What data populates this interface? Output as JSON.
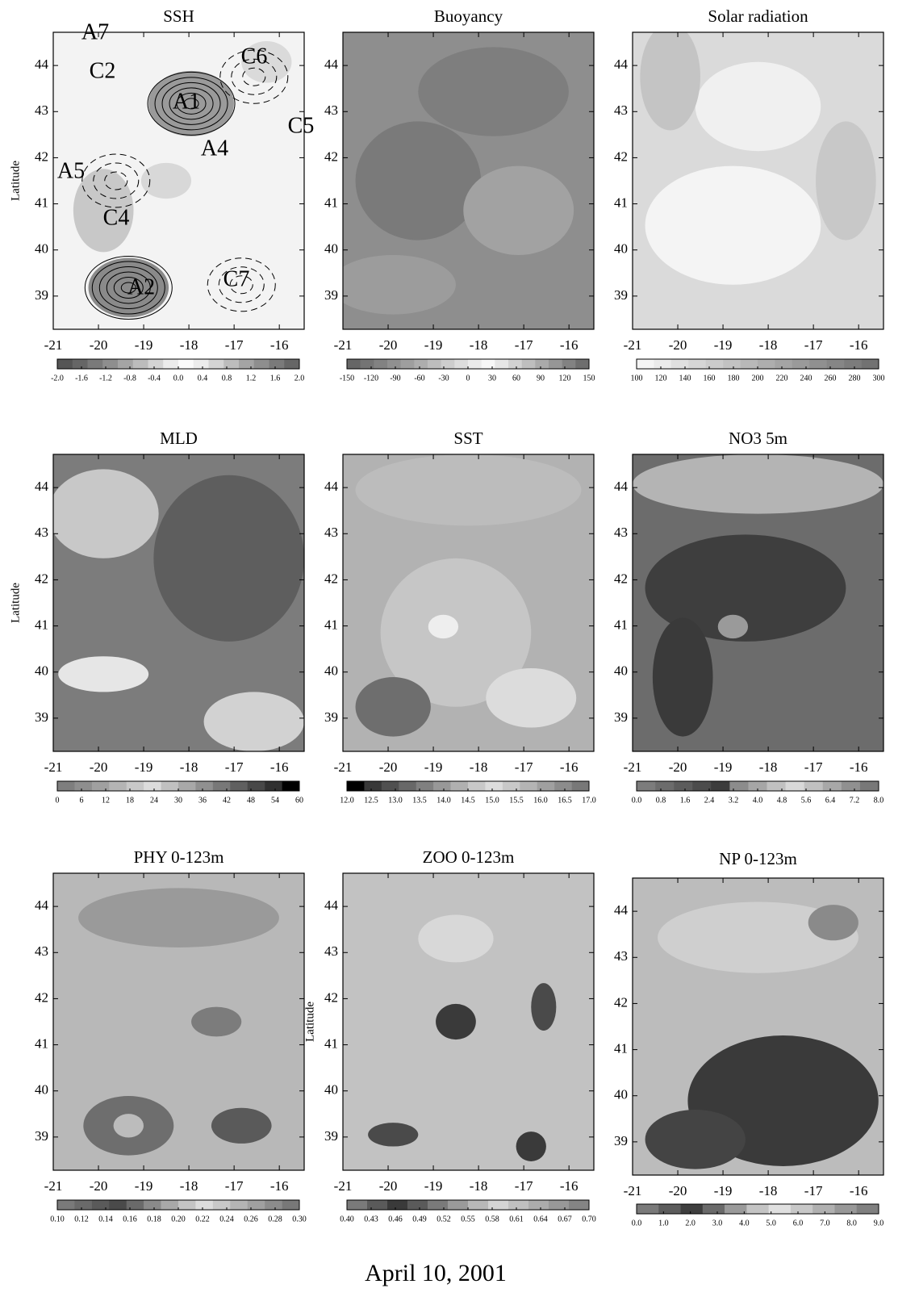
{
  "chart_data": [
    {
      "type": "heatmap",
      "title": "SSH",
      "ylabel": "Latitude",
      "xlim": [
        -21,
        -15.45
      ],
      "ylim": [
        38.28,
        44.72
      ],
      "xticks": [
        -21,
        -20,
        -19,
        -18,
        -17,
        -16
      ],
      "yticks": [
        39,
        40,
        41,
        42,
        43,
        44
      ],
      "annotations": [
        "A7",
        "C2",
        "A1",
        "C6",
        "C5",
        "A4",
        "A5",
        "C4",
        "C7",
        "A2"
      ],
      "colorbar": {
        "ticks": [
          {
            "value": -2,
            "label": "-2.0"
          },
          -1.6,
          -1.2,
          -0.8,
          -0.4,
          {
            "value": 0,
            "label": "0.0"
          },
          0.4,
          0.8,
          1.2,
          1.6,
          {
            "value": 2,
            "label": "2.0"
          }
        ],
        "colors": [
          "#555555",
          "#666666",
          "#7a7a7a",
          "#8e8e8e",
          "#a4a4a4",
          "#bcbcbc",
          "#d4d4d4",
          "#ececec",
          "#fafafa",
          "#ececec",
          "#d4d4d4",
          "#bcbcbc",
          "#a4a4a4",
          "#8e8e8e",
          "#7a7a7a",
          "#666666"
        ]
      }
    },
    {
      "type": "heatmap",
      "title": "Buoyancy",
      "xlim": [
        -21,
        -15.45
      ],
      "ylim": [
        38.28,
        44.72
      ],
      "xticks": [
        -21,
        -20,
        -19,
        -18,
        -17,
        -16
      ],
      "yticks": [
        39,
        40,
        41,
        42,
        43,
        44
      ],
      "colorbar": {
        "ticks": [
          -150,
          -120,
          -90,
          -60,
          -30,
          0,
          30,
          60,
          90,
          120,
          150
        ],
        "colors": [
          "#666666",
          "#747474",
          "#828282",
          "#909090",
          "#9e9e9e",
          "#adadad",
          "#bdbdbd",
          "#cdcdcd",
          "#dddddd",
          "#ebebeb",
          "#f7f7f7",
          "#e6e6e6",
          "#d2d2d2",
          "#bebebe",
          "#aaaaaa",
          "#969696",
          "#828282",
          "#6e6e6e"
        ]
      }
    },
    {
      "type": "heatmap",
      "title": "Solar radiation",
      "xlim": [
        -21,
        -15.45
      ],
      "ylim": [
        38.28,
        44.72
      ],
      "xticks": [
        -21,
        -20,
        -19,
        -18,
        -17,
        -16
      ],
      "yticks": [
        39,
        40,
        41,
        42,
        43,
        44
      ],
      "colorbar": {
        "ticks": [
          100,
          120,
          140,
          160,
          180,
          200,
          220,
          240,
          260,
          280,
          300
        ],
        "colors": [
          "#f5f5f5",
          "#ebebeb",
          "#e0e0e0",
          "#d6d6d6",
          "#cccccc",
          "#c2c2c2",
          "#b8b8b8",
          "#aeaeae",
          "#a4a4a4",
          "#9a9a9a",
          "#909090",
          "#868686",
          "#7c7c7c",
          "#727272"
        ]
      }
    },
    {
      "type": "heatmap",
      "title": "MLD",
      "ylabel": "Latitude",
      "xlim": [
        -21,
        -15.45
      ],
      "ylim": [
        38.28,
        44.72
      ],
      "xticks": [
        -21,
        -20,
        -19,
        -18,
        -17,
        -16
      ],
      "yticks": [
        39,
        40,
        41,
        42,
        43,
        44
      ],
      "colorbar": {
        "ticks": [
          0,
          6,
          12,
          18,
          24,
          30,
          36,
          42,
          48,
          54,
          60
        ],
        "colors": [
          "#7e7e7e",
          "#8e8e8e",
          "#a0a0a0",
          "#b4b4b4",
          "#c8c8c8",
          "#dcdcdc",
          "#c0c0c0",
          "#a8a8a8",
          "#909090",
          "#787878",
          "#606060",
          "#484848",
          "#303030",
          "#000000"
        ]
      }
    },
    {
      "type": "heatmap",
      "title": "SST",
      "xlim": [
        -21,
        -15.45
      ],
      "ylim": [
        38.28,
        44.72
      ],
      "xticks": [
        -21,
        -20,
        -19,
        -18,
        -17,
        -16
      ],
      "yticks": [
        39,
        40,
        41,
        42,
        43,
        44
      ],
      "colorbar": {
        "ticks": [
          {
            "value": 12,
            "label": "12.0"
          },
          12.5,
          {
            "value": 13,
            "label": "13.0"
          },
          13.5,
          {
            "value": 14,
            "label": "14.0"
          },
          14.5,
          {
            "value": 15,
            "label": "15.0"
          },
          15.5,
          {
            "value": 16,
            "label": "16.0"
          },
          16.5,
          {
            "value": 17,
            "label": "17.0"
          }
        ],
        "colors": [
          "#000000",
          "#383838",
          "#505050",
          "#686868",
          "#808080",
          "#989898",
          "#b0b0b0",
          "#c8c8c8",
          "#dcdcdc",
          "#c8c8c8",
          "#b4b4b4",
          "#a0a0a0",
          "#8c8c8c",
          "#787878"
        ]
      }
    },
    {
      "type": "heatmap",
      "title": "NO3 5m",
      "xlim": [
        -21,
        -15.45
      ],
      "ylim": [
        38.28,
        44.72
      ],
      "xticks": [
        -21,
        -20,
        -19,
        -18,
        -17,
        -16
      ],
      "yticks": [
        39,
        40,
        41,
        42,
        43,
        44
      ],
      "colorbar": {
        "ticks": [
          {
            "value": 0,
            "label": "0.0"
          },
          0.8,
          1.6,
          2.4,
          3.2,
          {
            "value": 4,
            "label": "4.0"
          },
          4.8,
          5.6,
          6.4,
          7.2,
          {
            "value": 8,
            "label": "8.0"
          }
        ],
        "colors": [
          "#7c7c7c",
          "#6c6c6c",
          "#5c5c5c",
          "#4c4c4c",
          "#3c3c3c",
          "#8c8c8c",
          "#a6a6a6",
          "#c0c0c0",
          "#d8d8d8",
          "#c0c0c0",
          "#a8a8a8",
          "#909090",
          "#787878"
        ]
      }
    },
    {
      "type": "heatmap",
      "title": "PHY 0-123m",
      "xlim": [
        -21,
        -15.45
      ],
      "ylim": [
        38.28,
        44.72
      ],
      "xticks": [
        -21,
        -20,
        -19,
        -18,
        -17,
        -16
      ],
      "yticks": [
        39,
        40,
        41,
        42,
        43,
        44
      ],
      "colorbar": {
        "ticks": [
          {
            "value": 0.1,
            "label": "0.10"
          },
          0.12,
          0.14,
          0.16,
          0.18,
          {
            "value": 0.2,
            "label": "0.20"
          },
          0.22,
          0.24,
          0.26,
          0.28,
          {
            "value": 0.3,
            "label": "0.30"
          }
        ],
        "colors": [
          "#7a7a7a",
          "#6a6a6a",
          "#5a5a5a",
          "#4a4a4a",
          "#6a6a6a",
          "#8a8a8a",
          "#a8a8a8",
          "#c4c4c4",
          "#dcdcdc",
          "#c8c8c8",
          "#b4b4b4",
          "#a0a0a0",
          "#8c8c8c",
          "#787878"
        ]
      }
    },
    {
      "type": "heatmap",
      "title": "ZOO 0-123m",
      "ylabel": "Latitude",
      "xlim": [
        -21,
        -15.45
      ],
      "ylim": [
        38.28,
        44.72
      ],
      "xticks": [
        -21,
        -20,
        -19,
        -18,
        -17,
        -16
      ],
      "yticks": [
        39,
        40,
        41,
        42,
        43,
        44
      ],
      "colorbar": {
        "ticks": [
          {
            "value": 0.4,
            "label": "0.40"
          },
          0.43,
          0.46,
          0.49,
          0.52,
          0.55,
          0.58,
          0.61,
          0.64,
          0.67,
          {
            "value": 0.7,
            "label": "0.70"
          }
        ],
        "colors": [
          "#7a7a7a",
          "#5a5a5a",
          "#3a3a3a",
          "#5a5a5a",
          "#7a7a7a",
          "#9a9a9a",
          "#b8b8b8",
          "#d4d4d4",
          "#c0c0c0",
          "#acacac",
          "#989898",
          "#848484"
        ]
      }
    },
    {
      "type": "heatmap",
      "title": "NP 0-123m",
      "xlim": [
        -21,
        -15.45
      ],
      "ylim": [
        38.28,
        44.72
      ],
      "xticks": [
        -21,
        -20,
        -19,
        -18,
        -17,
        -16
      ],
      "yticks": [
        39,
        40,
        41,
        42,
        43,
        44
      ],
      "colorbar": {
        "ticks": [
          {
            "value": 0,
            "label": "0.0"
          },
          {
            "value": 1,
            "label": "1.0"
          },
          {
            "value": 2,
            "label": "2.0"
          },
          {
            "value": 3,
            "label": "3.0"
          },
          {
            "value": 4,
            "label": "4.0"
          },
          {
            "value": 5,
            "label": "5.0"
          },
          {
            "value": 6,
            "label": "6.0"
          },
          {
            "value": 7,
            "label": "7.0"
          },
          {
            "value": 8,
            "label": "8.0"
          },
          {
            "value": 9,
            "label": "9.0"
          }
        ],
        "colors": [
          "#7a7a7a",
          "#5c5c5c",
          "#3e3e3e",
          "#6a6a6a",
          "#9a9a9a",
          "#c4c4c4",
          "#e0e0e0",
          "#c8c8c8",
          "#b0b0b0",
          "#989898",
          "#808080"
        ]
      }
    }
  ],
  "caption": "April 10, 2001"
}
